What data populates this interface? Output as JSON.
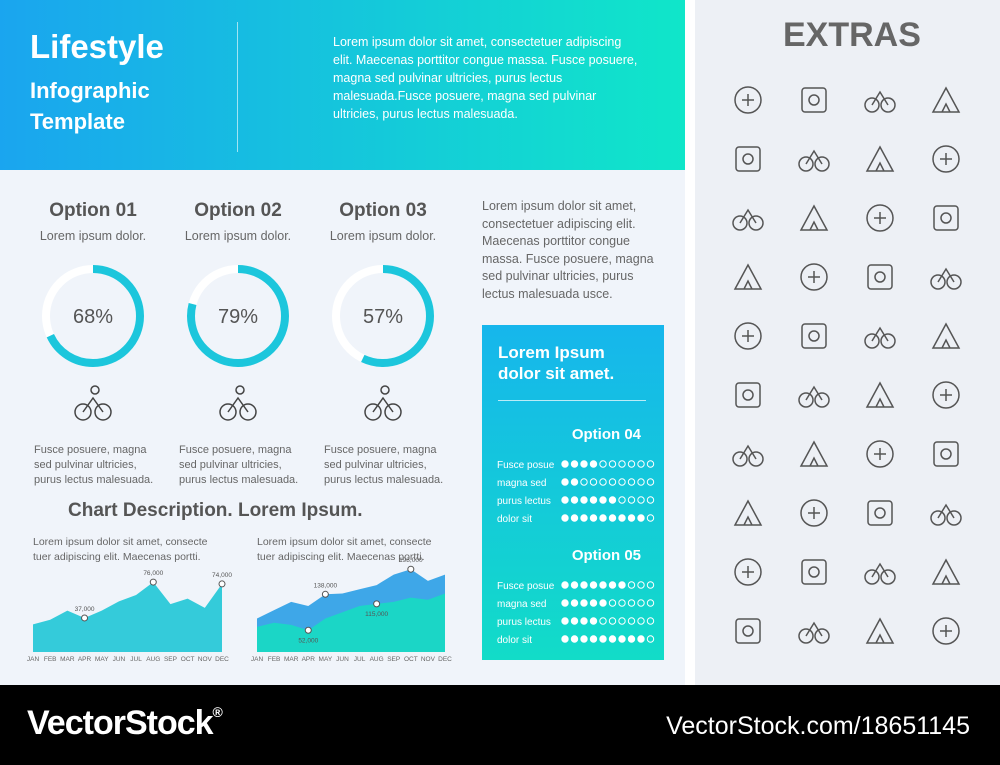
{
  "header": {
    "title": "Lifestyle",
    "subtitle_lines": [
      "Infographic",
      "Template"
    ],
    "text": "Lorem ipsum dolor sit amet, consectetuer adipiscing elit. Maecenas porttitor congue massa. Fusce posuere, magna sed pulvinar ultricies, purus lectus malesuada.Fusce posuere, magna sed pulvinar ultricies, purus lectus malesuada."
  },
  "options": [
    {
      "title": "Option 01",
      "subtitle": "Lorem ipsum dolor.",
      "value": 68,
      "value_label": "68%",
      "text": "Fusce posuere, magna sed pulvinar ultricies, purus lectus malesuada."
    },
    {
      "title": "Option 02",
      "subtitle": "Lorem ipsum dolor.",
      "value": 79,
      "value_label": "79%",
      "text": "Fusce posuere, magna sed pulvinar ultricies, purus lectus malesuada."
    },
    {
      "title": "Option 03",
      "subtitle": "Lorem ipsum dolor.",
      "value": 57,
      "value_label": "57%",
      "text": "Fusce posuere, magna sed pulvinar ultricies, purus lectus malesuada."
    }
  ],
  "side_text": "Lorem ipsum dolor sit amet, consectetuer adipiscing elit. Maecenas porttitor congue massa. Fusce posuere, magna sed pulvinar ultricies, purus lectus malesuada usce.",
  "panel": {
    "title": "Lorem Ipsum dolor sit amet.",
    "dots": 10,
    "groups": [
      {
        "title": "Option 04",
        "rows": [
          {
            "label": "Fusce posue",
            "value": 4
          },
          {
            "label": "magna sed",
            "value": 2
          },
          {
            "label": "purus lectus",
            "value": 6
          },
          {
            "label": "dolor sit",
            "value": 9
          }
        ]
      },
      {
        "title": "Option 05",
        "rows": [
          {
            "label": "Fusce posue",
            "value": 7
          },
          {
            "label": "magna sed",
            "value": 5
          },
          {
            "label": "purus lectus",
            "value": 4
          },
          {
            "label": "dolor sit",
            "value": 9
          }
        ]
      }
    ]
  },
  "chart_section": {
    "title": "Chart Description. Lorem Ipsum.",
    "charts": [
      {
        "type": "area",
        "text": "Lorem ipsum dolor sit amet, consecte tuer adipiscing elit. Maecenas portti.",
        "categories": [
          "JAN",
          "FEB",
          "MAR",
          "APR",
          "MAY",
          "JUN",
          "JUL",
          "AUG",
          "SEP",
          "OCT",
          "NOV",
          "DEC"
        ],
        "ylim": [
          0,
          100000
        ],
        "series": [
          {
            "color": "#1fc6d6",
            "values": [
              30000,
              35000,
              45000,
              37000,
              45000,
              55000,
              62000,
              76000,
              52000,
              58000,
              48000,
              74000
            ],
            "value_labels": [
              null,
              null,
              null,
              "37,000",
              null,
              null,
              null,
              "76,000",
              null,
              null,
              null,
              "74,000"
            ]
          }
        ]
      },
      {
        "type": "area",
        "text": "Lorem ipsum dolor sit amet, consecte tuer adipiscing elit. Maecenas portti.",
        "categories": [
          "JAN",
          "FEB",
          "MAR",
          "APR",
          "MAY",
          "JUN",
          "JUL",
          "AUG",
          "SEP",
          "OCT",
          "NOV",
          "DEC"
        ],
        "ylim": [
          0,
          220000
        ],
        "series": [
          {
            "color": "#2a9ee6",
            "values": [
              80000,
              100000,
              120000,
              110000,
              138000,
              140000,
              150000,
              160000,
              185000,
              198000,
              170000,
              185000
            ],
            "value_labels": [
              null,
              null,
              null,
              null,
              "138,000",
              null,
              null,
              null,
              null,
              "198,000",
              null,
              null
            ]
          },
          {
            "color": "#17dcc2",
            "values": [
              60000,
              70000,
              65000,
              52000,
              80000,
              95000,
              110000,
              115000,
              120000,
              130000,
              125000,
              140000
            ],
            "value_labels": [
              null,
              null,
              null,
              "52,000",
              null,
              null,
              null,
              "115,000",
              null,
              null,
              null,
              null
            ]
          }
        ]
      }
    ]
  },
  "extras": {
    "title": "EXTRAS"
  },
  "footer": {
    "brand": "VectorStock",
    "mark": "®",
    "id": "VectorStock.com/18651145"
  }
}
